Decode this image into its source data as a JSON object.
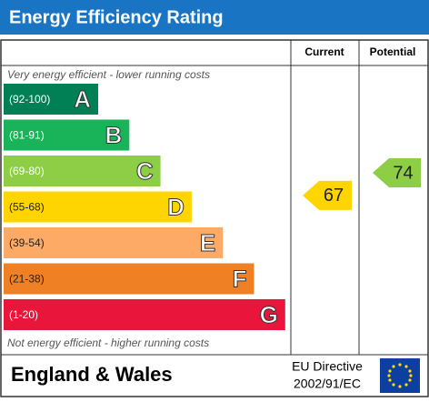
{
  "header": {
    "title": "Energy Efficiency Rating"
  },
  "columns": {
    "current": "Current",
    "potential": "Potential"
  },
  "top_note": "Very energy efficient - lower running costs",
  "bottom_note": "Not energy efficient - higher running costs",
  "bands": [
    {
      "range": "(92-100)",
      "letter": "A",
      "color": "#008054"
    },
    {
      "range": "(81-91)",
      "letter": "B",
      "color": "#19b459"
    },
    {
      "range": "(69-80)",
      "letter": "C",
      "color": "#8dce46"
    },
    {
      "range": "(55-68)",
      "letter": "D",
      "color": "#ffd500"
    },
    {
      "range": "(39-54)",
      "letter": "E",
      "color": "#fcaa65"
    },
    {
      "range": "(21-38)",
      "letter": "F",
      "color": "#ef8023"
    },
    {
      "range": "(1-20)",
      "letter": "G",
      "color": "#e9153b"
    }
  ],
  "current": 67,
  "potential": 74,
  "footer": {
    "region": "England & Wales",
    "directive_line1": "EU Directive",
    "directive_line2": "2002/91/EC"
  }
}
